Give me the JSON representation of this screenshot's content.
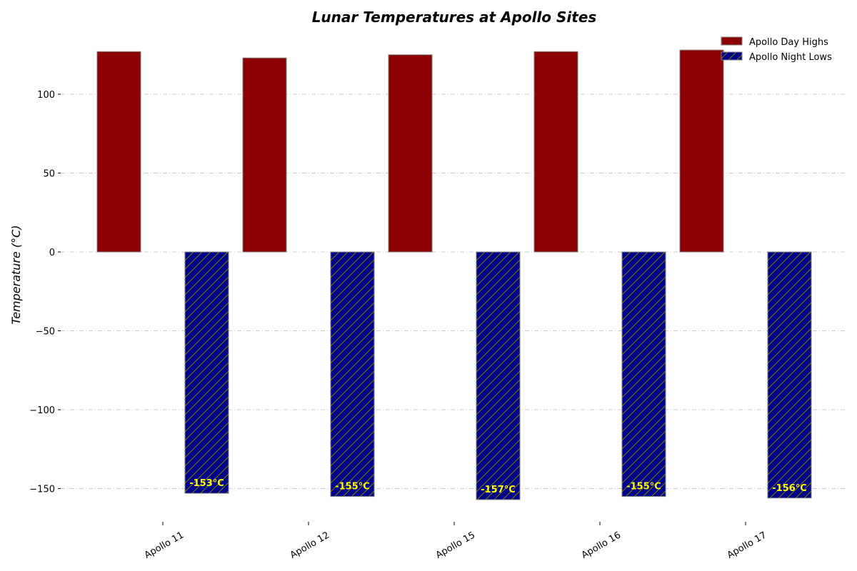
{
  "chart_data": {
    "type": "bar",
    "title": "Lunar Temperatures at Apollo Sites",
    "xlabel": "",
    "ylabel": "Temperature (°C)",
    "categories": [
      "Apollo 11",
      "Apollo 12",
      "Apollo 15",
      "Apollo 16",
      "Apollo 17"
    ],
    "series": [
      {
        "name": "Apollo Day Highs",
        "values": [
          127,
          123,
          125,
          127,
          128
        ],
        "color": "#8b0000",
        "hatch": false
      },
      {
        "name": "Apollo Night Lows",
        "values": [
          -153,
          -155,
          -157,
          -155,
          -156
        ],
        "color": "#00008b",
        "hatch": true,
        "data_labels": [
          "-153°C",
          "-155°C",
          "-157°C",
          "-155°C",
          "-156°C"
        ]
      }
    ],
    "ylim": [
      -170,
      140
    ],
    "yticks": [
      -150,
      -100,
      -50,
      0,
      50,
      100
    ],
    "ytick_labels": [
      "−150",
      "−100",
      "−50",
      "0",
      "50",
      "100"
    ],
    "grid": true,
    "legend_position": "top-right",
    "label_color": "#ffff00",
    "hatch_color": "#808000",
    "edge_color": "#808080"
  }
}
